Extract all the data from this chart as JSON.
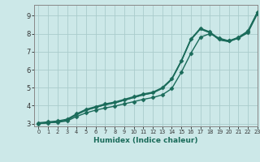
{
  "xlabel": "Humidex (Indice chaleur)",
  "background_color": "#cce8e8",
  "grid_color": "#aacccc",
  "line_color": "#1a6b5a",
  "xlim": [
    -0.5,
    23
  ],
  "ylim": [
    2.85,
    9.6
  ],
  "xticks": [
    0,
    1,
    2,
    3,
    4,
    5,
    6,
    7,
    8,
    9,
    10,
    11,
    12,
    13,
    14,
    15,
    16,
    17,
    18,
    19,
    20,
    21,
    22,
    23
  ],
  "yticks": [
    3,
    4,
    5,
    6,
    7,
    8,
    9
  ],
  "series": [
    {
      "x": [
        0,
        1,
        2,
        3,
        4,
        5,
        6,
        7,
        8,
        9,
        10,
        11,
        12,
        13,
        14,
        15,
        16,
        17,
        18,
        19,
        20,
        21,
        22,
        23
      ],
      "y": [
        3.05,
        3.1,
        3.15,
        3.25,
        3.55,
        3.8,
        3.95,
        4.1,
        4.2,
        4.35,
        4.5,
        4.65,
        4.75,
        5.0,
        5.5,
        6.5,
        7.7,
        8.3,
        8.1,
        7.7,
        7.6,
        7.8,
        8.15,
        9.2
      ],
      "marker": "D",
      "markersize": 2.5,
      "linewidth": 1.0
    },
    {
      "x": [
        0,
        1,
        2,
        3,
        4,
        5,
        6,
        7,
        8,
        9,
        10,
        11,
        12,
        13,
        14,
        15,
        16,
        17,
        18,
        19,
        20,
        21,
        22,
        23
      ],
      "y": [
        3.0,
        3.05,
        3.1,
        3.2,
        3.5,
        3.75,
        3.9,
        4.05,
        4.15,
        4.3,
        4.45,
        4.6,
        4.7,
        4.95,
        5.45,
        6.45,
        7.65,
        8.25,
        8.05,
        7.65,
        7.55,
        7.75,
        8.1,
        9.15
      ],
      "marker": null,
      "markersize": 0,
      "linewidth": 0.9
    },
    {
      "x": [
        0,
        1,
        2,
        3,
        4,
        5,
        6,
        7,
        8,
        9,
        10,
        11,
        12,
        13,
        14,
        15,
        16,
        17,
        18,
        19,
        20,
        21,
        22,
        23
      ],
      "y": [
        3.0,
        3.05,
        3.1,
        3.2,
        3.5,
        3.75,
        3.9,
        4.05,
        4.15,
        4.3,
        4.45,
        4.6,
        4.72,
        4.97,
        5.47,
        6.47,
        7.67,
        8.27,
        8.07,
        7.67,
        7.57,
        7.77,
        8.12,
        9.17
      ],
      "marker": null,
      "markersize": 0,
      "linewidth": 0.9
    },
    {
      "x": [
        0,
        1,
        2,
        3,
        4,
        5,
        6,
        7,
        8,
        9,
        10,
        11,
        12,
        13,
        14,
        15,
        16,
        17,
        18,
        19,
        20,
        21,
        22,
        23
      ],
      "y": [
        3.0,
        3.05,
        3.08,
        3.15,
        3.4,
        3.6,
        3.75,
        3.87,
        3.97,
        4.1,
        4.22,
        4.35,
        4.45,
        4.6,
        4.95,
        5.85,
        6.9,
        7.8,
        8.0,
        7.75,
        7.6,
        7.75,
        8.05,
        9.1
      ],
      "marker": "D",
      "markersize": 2.5,
      "linewidth": 1.0
    }
  ]
}
